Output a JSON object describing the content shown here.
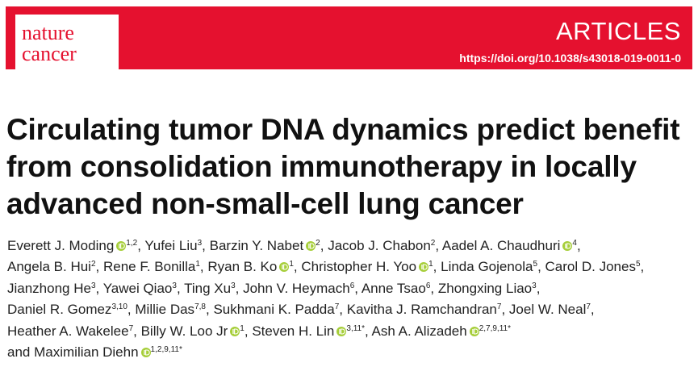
{
  "header": {
    "journal_lines": [
      "nature",
      "cancer"
    ],
    "section": "ARTICLES",
    "doi": "https://doi.org/10.1038/s43018-019-0011-0"
  },
  "title_lines": [
    "Circulating tumor DNA dynamics predict benefit",
    "from consolidation immunotherapy in locally",
    "advanced non-small-cell lung cancer"
  ],
  "separator": ",",
  "conjunction": "and",
  "author_lines": [
    [
      {
        "name": "Everett J. Moding",
        "orcid": true,
        "affiliations": "1,2"
      },
      {
        "name": "Yufei Liu",
        "orcid": false,
        "affiliations": "3"
      },
      {
        "name": "Barzin Y. Nabet",
        "orcid": true,
        "affiliations": "2"
      },
      {
        "name": "Jacob J. Chabon",
        "orcid": false,
        "affiliations": "2"
      },
      {
        "name": "Aadel A. Chaudhuri",
        "orcid": true,
        "affiliations": "4"
      }
    ],
    [
      {
        "name": "Angela B. Hui",
        "orcid": false,
        "affiliations": "2"
      },
      {
        "name": "Rene F. Bonilla",
        "orcid": false,
        "affiliations": "1"
      },
      {
        "name": "Ryan B. Ko",
        "orcid": true,
        "affiliations": "1"
      },
      {
        "name": "Christopher H. Yoo",
        "orcid": true,
        "affiliations": "1"
      },
      {
        "name": "Linda Gojenola",
        "orcid": false,
        "affiliations": "5"
      },
      {
        "name": "Carol D. Jones",
        "orcid": false,
        "affiliations": "5"
      }
    ],
    [
      {
        "name": "Jianzhong He",
        "orcid": false,
        "affiliations": "3"
      },
      {
        "name": "Yawei Qiao",
        "orcid": false,
        "affiliations": "3"
      },
      {
        "name": "Ting Xu",
        "orcid": false,
        "affiliations": "3"
      },
      {
        "name": "John V. Heymach",
        "orcid": false,
        "affiliations": "6"
      },
      {
        "name": "Anne Tsao",
        "orcid": false,
        "affiliations": "6"
      },
      {
        "name": "Zhongxing Liao",
        "orcid": false,
        "affiliations": "3"
      }
    ],
    [
      {
        "name": "Daniel R. Gomez",
        "orcid": false,
        "affiliations": "3,10"
      },
      {
        "name": "Millie Das",
        "orcid": false,
        "affiliations": "7,8"
      },
      {
        "name": "Sukhmani K. Padda",
        "orcid": false,
        "affiliations": "7"
      },
      {
        "name": "Kavitha J. Ramchandran",
        "orcid": false,
        "affiliations": "7"
      },
      {
        "name": "Joel W. Neal",
        "orcid": false,
        "affiliations": "7"
      }
    ],
    [
      {
        "name": "Heather A. Wakelee",
        "orcid": false,
        "affiliations": "7"
      },
      {
        "name": "Billy W. Loo Jr",
        "orcid": true,
        "affiliations": "1"
      },
      {
        "name": "Steven H. Lin",
        "orcid": true,
        "affiliations": "3,11*"
      },
      {
        "name": "Ash A. Alizadeh",
        "orcid": true,
        "affiliations": "2,7,9,11*"
      }
    ],
    [
      {
        "name": "Maximilian Diehn",
        "orcid": true,
        "affiliations": "1,2,9,11*"
      }
    ]
  ]
}
